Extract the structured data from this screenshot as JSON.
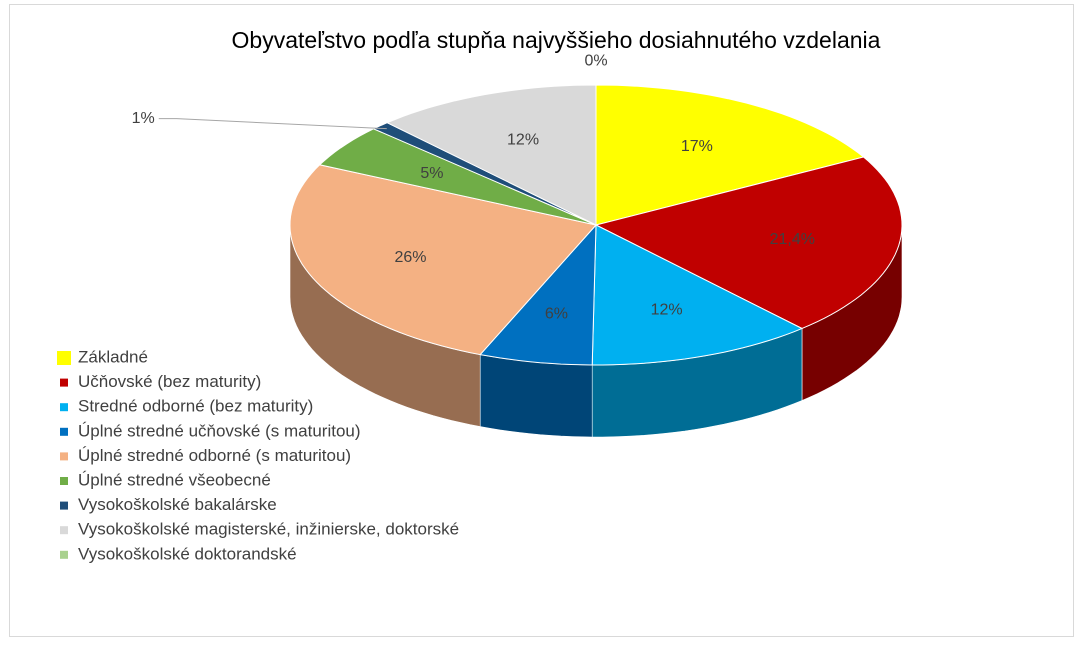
{
  "chart_data": {
    "type": "pie3d",
    "title": "Obyvateľstvo podľa stupňa najvyššieho dosiahnutého vzdelania",
    "categories": [
      "Základné",
      "Učňovské (bez maturity)",
      "Stredné odborné (bez maturity)",
      "Úplné stredné učňovské (s maturitou)",
      "Úplné stredné odborné (s maturitou)",
      "Úplné stredné všeobecné",
      "Vysokoškolské bakalárske",
      "Vysokoškolské magisterské, inžinierske, doktorské",
      "Vysokoškolské doktorandské"
    ],
    "values": [
      17,
      21.4,
      12,
      6,
      26,
      5,
      1,
      12,
      0
    ],
    "value_labels": [
      "17%",
      "21,4%",
      "12%",
      "6%",
      "26%",
      "5%",
      "1%",
      "12%",
      "0%"
    ],
    "colors": [
      "#ffff00",
      "#c00000",
      "#00b0f0",
      "#0070c0",
      "#f4b183",
      "#70ad47",
      "#1f4e79",
      "#d9d9d9",
      "#a9d18e"
    ],
    "legend": "bottom-left"
  }
}
